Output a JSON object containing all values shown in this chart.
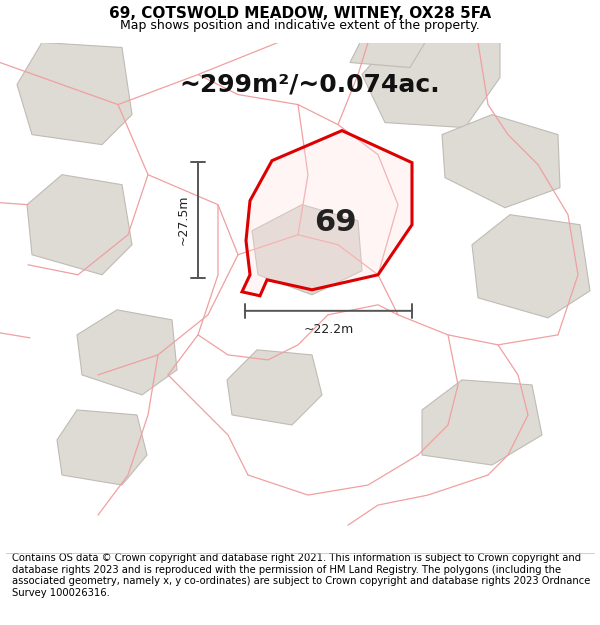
{
  "title": "69, COTSWOLD MEADOW, WITNEY, OX28 5FA",
  "subtitle": "Map shows position and indicative extent of the property.",
  "area_text": "~299m²/~0.074ac.",
  "dim_vertical": "~27.5m",
  "dim_horizontal": "~22.2m",
  "label_69": "69",
  "footer": "Contains OS data © Crown copyright and database right 2021. This information is subject to Crown copyright and database rights 2023 and is reproduced with the permission of HM Land Registry. The polygons (including the associated geometry, namely x, y co-ordinates) are subject to Crown copyright and database rights 2023 Ordnance Survey 100026316.",
  "map_bg": "#ede9e4",
  "building_fill": "#dedad4",
  "building_stroke": "#c0bbb4",
  "pink_line_color": "#f0a0a0",
  "red_plot_color": "#dd0000",
  "plot_face_color": [
    1.0,
    0.88,
    0.88,
    0.3
  ],
  "dim_line_color": "#555555",
  "title_fontsize": 11,
  "subtitle_fontsize": 9,
  "area_fontsize": 18,
  "label_fontsize": 22,
  "footer_fontsize": 7.2
}
